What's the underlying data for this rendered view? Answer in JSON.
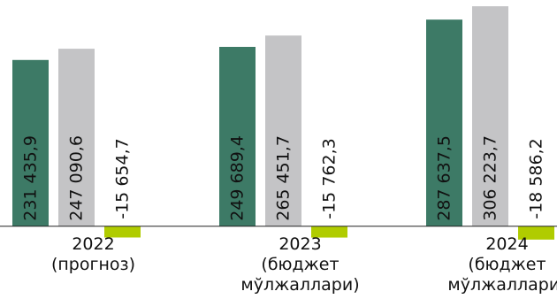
{
  "chart_data": {
    "type": "bar",
    "categories": [
      [
        "2022",
        "(прогноз)"
      ],
      [
        "2023",
        "(бюджет",
        "мўлжаллари)"
      ],
      [
        "2024",
        "(бюджет",
        "мўлжаллари)"
      ]
    ],
    "series": [
      {
        "color": "#3d7a66",
        "values": [
          231435.9,
          249689.4,
          287637.5
        ]
      },
      {
        "color": "#c4c4c6",
        "values": [
          247090.6,
          265451.7,
          306223.7
        ]
      },
      {
        "color": "#b0cc00",
        "values": [
          -15654.7,
          -15762.3,
          -18586.2
        ]
      }
    ],
    "value_labels": [
      [
        "231 435,9",
        "249 689,4",
        "287 637,5"
      ],
      [
        "247 090,6",
        "265 451,7",
        "306 223,7"
      ],
      [
        "-15 654,7",
        "-15 762,3",
        "-18 586,2"
      ]
    ],
    "ylim": [
      -20000,
      310000
    ],
    "grid": false,
    "legend": "none"
  }
}
